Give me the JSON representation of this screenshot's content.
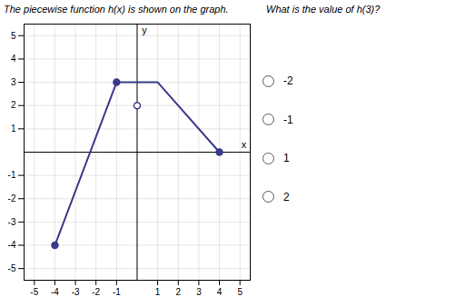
{
  "chart_data": {
    "type": "line",
    "title": "The piecewise function h(x) is shown on the graph.",
    "subtitle": "What is the value of h(3)?",
    "choices": [
      "-2",
      "-1",
      "1",
      "2"
    ],
    "xlabel": "x",
    "ylabel": "y",
    "series": [
      {
        "x": [
          -4,
          -1
        ],
        "values": [
          -4,
          3
        ]
      },
      {
        "x": [
          -1,
          1,
          4
        ],
        "values": [
          3,
          3,
          0
        ]
      }
    ],
    "closed_points": [
      [
        -4,
        -4
      ],
      [
        -1,
        3
      ],
      [
        4,
        0
      ]
    ],
    "open_points": [
      [
        0,
        2
      ]
    ],
    "color": "#3a3a8c",
    "xlim": [
      -5.5,
      5.5
    ],
    "ylim": [
      -5.5,
      5.5
    ],
    "xticks": [
      -5,
      -4,
      -3,
      -2,
      -1,
      1,
      2,
      3,
      4,
      5
    ],
    "yticks": [
      -5,
      -4,
      -3,
      -2,
      -1,
      1,
      2,
      3,
      4,
      5
    ],
    "grid": true
  }
}
